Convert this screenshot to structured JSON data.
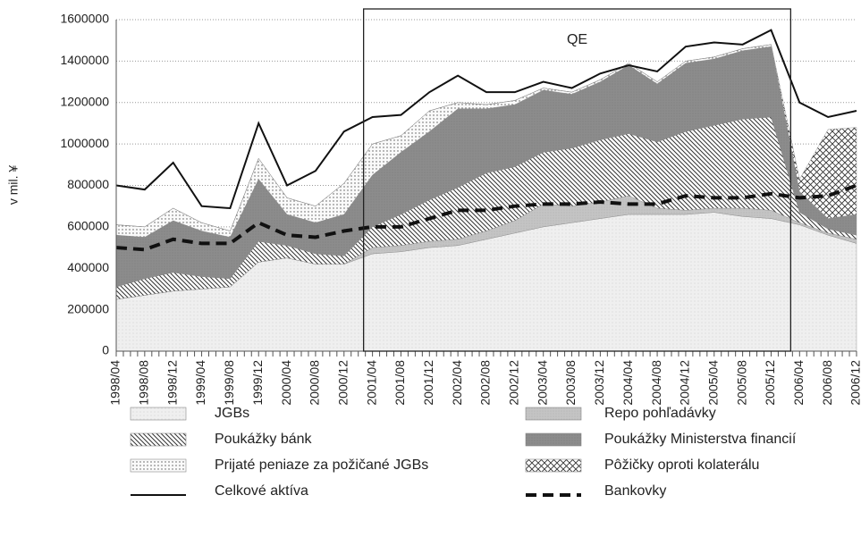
{
  "chart_data": {
    "type": "stacked-area",
    "ylabel": "v mil. ¥",
    "annotation": "QE",
    "categories": [
      "1998/04",
      "1998/08",
      "1998/12",
      "1999/04",
      "1999/08",
      "1999/12",
      "2000/04",
      "2000/08",
      "2000/12",
      "2001/04",
      "2001/08",
      "2001/12",
      "2002/04",
      "2002/08",
      "2002/12",
      "2003/04",
      "2003/08",
      "2003/12",
      "2004/04",
      "2004/08",
      "2004/12",
      "2005/04",
      "2005/08",
      "2005/12",
      "2006/04",
      "2006/08",
      "2006/12"
    ],
    "ylim": [
      0,
      1600000
    ],
    "yticks": [
      0,
      200000,
      400000,
      600000,
      800000,
      1000000,
      1200000,
      1400000,
      1600000
    ],
    "grid": true,
    "legend": "bottom",
    "series": [
      {
        "name": "JGBs",
        "type": "area",
        "color": "#efefef",
        "values": [
          250000,
          270000,
          290000,
          300000,
          310000,
          430000,
          450000,
          420000,
          420000,
          470000,
          480000,
          500000,
          510000,
          540000,
          570000,
          600000,
          620000,
          640000,
          660000,
          660000,
          660000,
          670000,
          650000,
          640000,
          610000,
          560000,
          520000
        ]
      },
      {
        "name": "Repo pohľadávky",
        "type": "area",
        "color": "#c4c4c4",
        "values": [
          0,
          0,
          0,
          0,
          0,
          0,
          0,
          0,
          0,
          30000,
          30000,
          30000,
          30000,
          40000,
          60000,
          110000,
          80000,
          80000,
          90000,
          30000,
          20000,
          20000,
          40000,
          40000,
          10000,
          10000,
          20000
        ]
      },
      {
        "name": "Poukážky bánk",
        "type": "area",
        "color": "#ffffff",
        "values": [
          60000,
          80000,
          90000,
          60000,
          40000,
          100000,
          60000,
          50000,
          40000,
          100000,
          150000,
          200000,
          250000,
          280000,
          260000,
          250000,
          280000,
          300000,
          300000,
          320000,
          380000,
          400000,
          430000,
          450000,
          50000,
          20000,
          20000
        ]
      },
      {
        "name": "Poukážky Ministerstva financií",
        "type": "area",
        "color": "#8c8c8c",
        "values": [
          250000,
          200000,
          250000,
          220000,
          200000,
          300000,
          150000,
          150000,
          200000,
          250000,
          300000,
          330000,
          380000,
          310000,
          300000,
          300000,
          260000,
          280000,
          330000,
          280000,
          330000,
          320000,
          330000,
          340000,
          100000,
          50000,
          100000
        ]
      },
      {
        "name": "Prijaté peniaze za požičané JGBs",
        "type": "area",
        "color": "#fafafa",
        "values": [
          50000,
          50000,
          60000,
          40000,
          30000,
          100000,
          80000,
          80000,
          150000,
          150000,
          80000,
          100000,
          30000,
          20000,
          20000,
          10000,
          10000,
          10000,
          10000,
          10000,
          10000,
          10000,
          10000,
          10000,
          0,
          0,
          0
        ]
      },
      {
        "name": "Pôžičky oproti kolaterálu",
        "type": "area",
        "color": "#ffffff",
        "values": [
          0,
          0,
          0,
          0,
          0,
          0,
          0,
          0,
          0,
          0,
          0,
          0,
          0,
          0,
          0,
          0,
          0,
          0,
          0,
          0,
          0,
          0,
          0,
          0,
          60000,
          430000,
          420000
        ]
      },
      {
        "name": "Celkové aktíva",
        "type": "line",
        "color": "#111111",
        "values": [
          800000,
          780000,
          910000,
          700000,
          690000,
          1100000,
          800000,
          870000,
          1060000,
          1130000,
          1140000,
          1250000,
          1330000,
          1250000,
          1250000,
          1300000,
          1270000,
          1340000,
          1380000,
          1350000,
          1470000,
          1490000,
          1480000,
          1550000,
          1200000,
          1130000,
          1160000
        ]
      },
      {
        "name": "Bankovky",
        "type": "line",
        "line_style": "dashed",
        "color": "#111111",
        "values": [
          500000,
          490000,
          540000,
          520000,
          520000,
          620000,
          560000,
          550000,
          580000,
          600000,
          600000,
          640000,
          680000,
          680000,
          700000,
          710000,
          710000,
          720000,
          710000,
          710000,
          750000,
          740000,
          740000,
          760000,
          740000,
          750000,
          800000
        ]
      }
    ]
  }
}
